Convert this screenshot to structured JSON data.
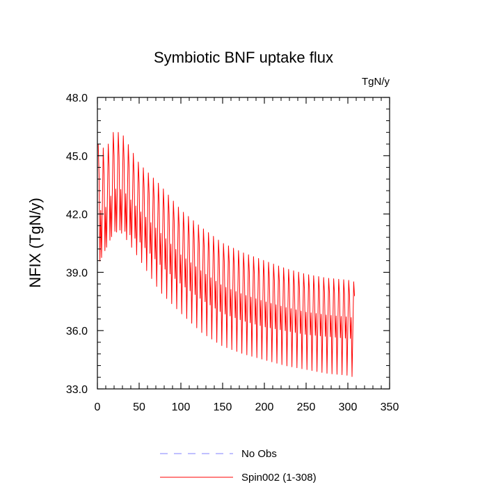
{
  "chart_data": {
    "type": "line",
    "title": "Symbiotic BNF uptake flux",
    "units_label": "TgN/y",
    "ylabel": "NFIX  (TgN/y)",
    "xlabel": "",
    "xlim": [
      0,
      350
    ],
    "ylim": [
      33.0,
      48.0
    ],
    "x_ticks": [
      0,
      50,
      100,
      150,
      200,
      250,
      300,
      350
    ],
    "x_tick_labels": [
      "0",
      "50",
      "100",
      "150",
      "200",
      "250",
      "300",
      "350"
    ],
    "y_ticks": [
      33.0,
      36.0,
      39.0,
      42.0,
      45.0,
      48.0
    ],
    "y_tick_labels": [
      "33.0",
      "36.0",
      "39.0",
      "42.0",
      "45.0",
      "48.0"
    ],
    "grid": false,
    "legend_position": "bottom",
    "series": [
      {
        "name": "No Obs",
        "color": "#8080ff",
        "dash": "dashed",
        "values": []
      },
      {
        "name": "Spin002 (1-308)",
        "color": "#ff0000",
        "dash": "solid",
        "x_range": [
          1,
          308
        ],
        "seasonal_envelope": {
          "x": [
            1,
            10,
            20,
            30,
            50,
            75,
            100,
            125,
            150,
            175,
            200,
            225,
            250,
            275,
            300,
            308
          ],
          "upper": [
            45.6,
            45.3,
            46.3,
            46.1,
            44.6,
            43.5,
            42.2,
            41.3,
            40.5,
            40.0,
            39.6,
            39.2,
            38.9,
            38.7,
            38.6,
            38.5
          ],
          "lower": [
            39.4,
            40.2,
            41.1,
            41.2,
            40.6,
            39.4,
            38.4,
            37.6,
            36.9,
            36.5,
            36.2,
            36.0,
            35.8,
            35.7,
            35.6,
            35.6
          ],
          "min": [
            39.4,
            40.2,
            41.1,
            41.0,
            39.7,
            38.0,
            36.9,
            35.9,
            35.2,
            34.8,
            34.5,
            34.2,
            34.0,
            33.8,
            33.7,
            33.6
          ]
        }
      }
    ]
  }
}
